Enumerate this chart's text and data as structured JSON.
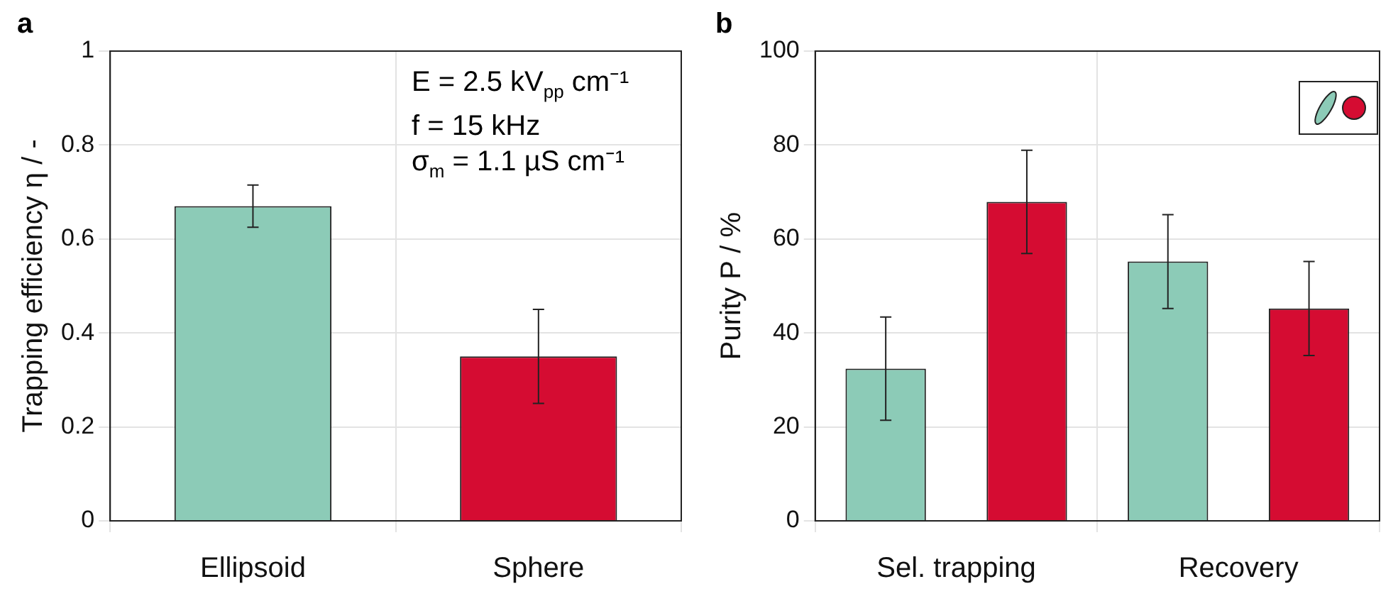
{
  "chart_data": [
    {
      "type": "bar",
      "title": "a",
      "ylabel": "Trapping efficiency η / -",
      "categories": [
        "Ellipsoid",
        "Sphere"
      ],
      "values": [
        0.67,
        0.35
      ],
      "colors": [
        "#8ccbb7",
        "#d50c32"
      ],
      "errors": [
        0.045,
        0.1
      ],
      "ylim": [
        0,
        1
      ],
      "yticks": [
        0,
        0.2,
        0.4,
        0.6,
        0.8,
        1
      ],
      "grid": true,
      "legend": false,
      "annotations": [
        "E  =  2.5 kV$_{pp}$ cm⁻¹",
        "f   =  15 kHz",
        "σ$_{m}$ =  1.1 µS cm⁻¹"
      ]
    },
    {
      "type": "bar",
      "title": "b",
      "ylabel": "Purity P / %",
      "categories": [
        "Sel. trapping",
        "Recovery"
      ],
      "series": [
        {
          "color": "#8ccbb7",
          "values": [
            32.4,
            55.2
          ],
          "errors": [
            11,
            10
          ]
        },
        {
          "color": "#d50c32",
          "values": [
            67.9,
            45.2
          ],
          "errors": [
            11,
            10
          ]
        }
      ],
      "ylim": [
        0,
        100
      ],
      "yticks": [
        0,
        20,
        40,
        60,
        80,
        100
      ],
      "grid": true,
      "legend": false
    }
  ]
}
